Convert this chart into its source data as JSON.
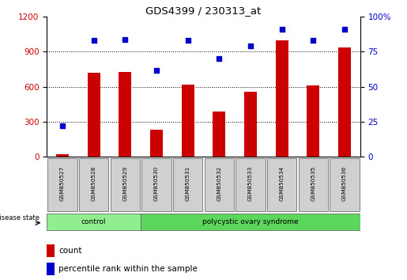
{
  "title": "GDS4399 / 230313_at",
  "samples": [
    "GSM850527",
    "GSM850528",
    "GSM850529",
    "GSM850530",
    "GSM850531",
    "GSM850532",
    "GSM850533",
    "GSM850534",
    "GSM850535",
    "GSM850536"
  ],
  "counts": [
    20,
    720,
    730,
    230,
    620,
    390,
    560,
    1000,
    610,
    940
  ],
  "percentiles": [
    22,
    83,
    84,
    62,
    83,
    70,
    79,
    91,
    83,
    91
  ],
  "groups": [
    {
      "label": "control",
      "start": 0,
      "end": 3,
      "color": "#90ee90"
    },
    {
      "label": "polycystic ovary syndrome",
      "start": 3,
      "end": 10,
      "color": "#5cd65c"
    }
  ],
  "bar_color": "#cc0000",
  "dot_color": "#0000cc",
  "left_ylim": [
    0,
    1200
  ],
  "right_ylim": [
    0,
    100
  ],
  "left_yticks": [
    0,
    300,
    600,
    900,
    1200
  ],
  "right_yticks": [
    0,
    25,
    50,
    75,
    100
  ],
  "right_yticklabels": [
    "0",
    "25",
    "50",
    "75",
    "100%"
  ],
  "grid_values": [
    300,
    600,
    900
  ],
  "legend_count_label": "count",
  "legend_pct_label": "percentile rank within the sample",
  "disease_state_label": "disease state",
  "bar_color_legend": "#cc0000",
  "dot_color_legend": "#0000cc",
  "tick_label_color_left": "#cc0000",
  "tick_label_color_right": "#0000cc",
  "bar_width": 0.4,
  "box_color": "#d0d0d0"
}
